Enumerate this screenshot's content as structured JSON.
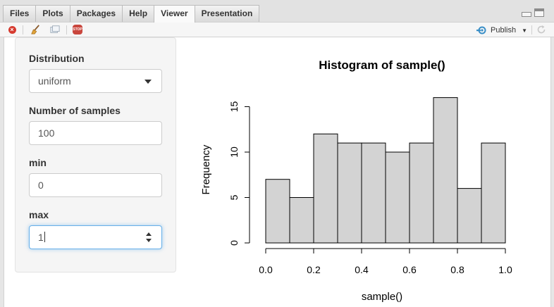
{
  "tabs": [
    {
      "label": "Files",
      "active": false
    },
    {
      "label": "Plots",
      "active": false
    },
    {
      "label": "Packages",
      "active": false
    },
    {
      "label": "Help",
      "active": false
    },
    {
      "label": "Viewer",
      "active": true
    },
    {
      "label": "Presentation",
      "active": false
    }
  ],
  "toolbar": {
    "publish_label": "Publish",
    "icons": [
      "remove-viewer-icon",
      "clear-broom-icon",
      "show-in-window-icon",
      "stop-icon",
      "publish-icon",
      "refresh-icon"
    ]
  },
  "sidebar": {
    "distribution_label": "Distribution",
    "distribution_value": "uniform",
    "samples_label": "Number of samples",
    "samples_value": "100",
    "min_label": "min",
    "min_value": "0",
    "max_label": "max",
    "max_value": "1"
  },
  "chart_data": {
    "type": "bar",
    "title": "Histogram of sample()",
    "xlabel": "sample()",
    "ylabel": "Frequency",
    "bin_edges": [
      0.0,
      0.1,
      0.2,
      0.3,
      0.4,
      0.5,
      0.6,
      0.7,
      0.8,
      0.9,
      1.0
    ],
    "values": [
      7,
      5,
      12,
      11,
      11,
      10,
      11,
      16,
      6,
      11
    ],
    "xlim": [
      0,
      1
    ],
    "ylim": [
      0,
      16
    ],
    "x_ticks": [
      "0.0",
      "0.2",
      "0.4",
      "0.6",
      "0.8",
      "1.0"
    ],
    "y_ticks": [
      "0",
      "5",
      "10",
      "15"
    ],
    "bar_fill": "#d3d3d3",
    "grid": false
  }
}
